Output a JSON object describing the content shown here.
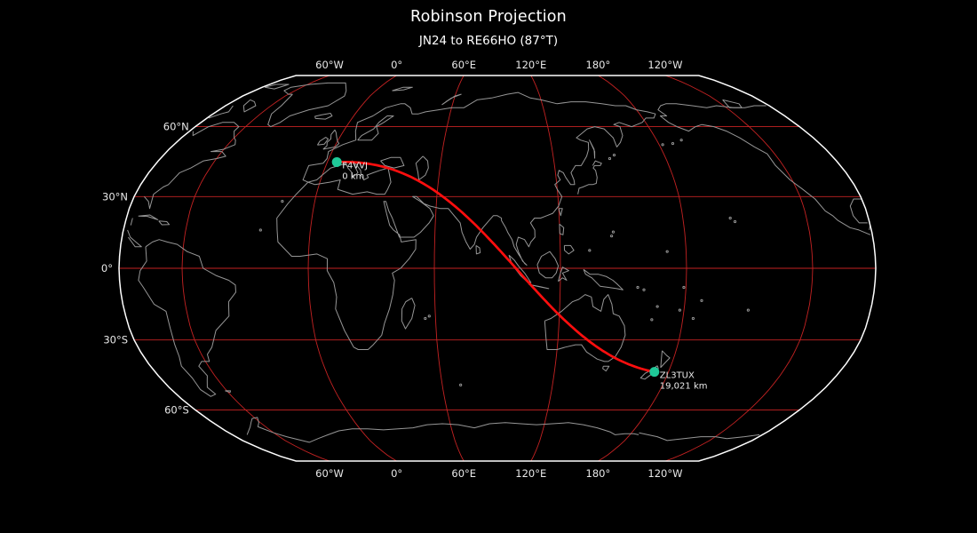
{
  "title": "Robinson Projection",
  "subtitle": "JN24 to RE66HO (87°T)",
  "map": {
    "projection": "Robinson",
    "central_longitude": 90,
    "gridline_labels": {
      "top": [
        "60°W",
        "0°",
        "60°E",
        "120°E",
        "180°",
        "120°W"
      ],
      "bottom": [
        "60°W",
        "0°",
        "60°E",
        "120°E",
        "180°",
        "120°W"
      ],
      "left": [
        "60°N",
        "30°N",
        "0°",
        "30°S",
        "60°S"
      ]
    },
    "gridline_lons": [
      -60,
      0,
      60,
      120,
      180,
      -120
    ],
    "gridline_lats": [
      60,
      30,
      0,
      -30,
      -60
    ],
    "markers": [
      {
        "callsign": "F4VVJ",
        "distance": "0 km",
        "lon": 5.0,
        "lat": 44.5
      },
      {
        "callsign": "ZL3TUX",
        "distance": "19,021 km",
        "lon": 172.6,
        "lat": -43.4
      }
    ],
    "path": {
      "from": "JN24",
      "to": "RE66HO",
      "bearing": "87°T",
      "distance": "19,021 km"
    },
    "colors": {
      "background": "#000000",
      "outline": "#ffffff",
      "coastline": "#969696",
      "gridline": "#c42222",
      "great_circle": "#ff0e0e",
      "marker": "#1fc998",
      "title_text": "#ffffff",
      "tick_text": "#e8e8e8",
      "marker_text": "#e8e8e8"
    }
  }
}
